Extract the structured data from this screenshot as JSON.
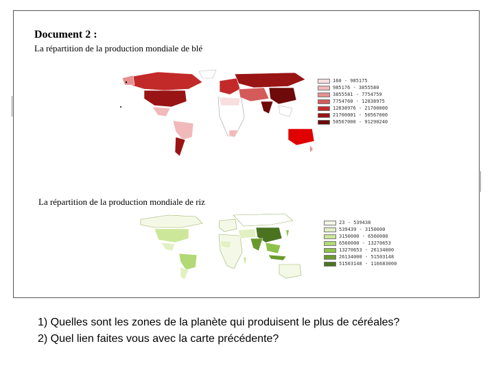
{
  "document": {
    "title": "Document 2 :",
    "wheat_map": {
      "title": "La répartition de la production mondiale de blé",
      "legend": [
        {
          "label": "160 - 985175",
          "color": "#f8dede"
        },
        {
          "label": "985176 - 3855580",
          "color": "#f1b9b9"
        },
        {
          "label": "3855581 - 7754759",
          "color": "#e69090"
        },
        {
          "label": "7754760 - 12838975",
          "color": "#d55a5a"
        },
        {
          "label": "12838976 - 21700000",
          "color": "#c22a2a"
        },
        {
          "label": "21700001 - 50567000",
          "color": "#991414"
        },
        {
          "label": "50567000 - 91290240",
          "color": "#6e0a0a"
        }
      ]
    },
    "rice_map": {
      "title": "La répartition de la production mondiale de riz",
      "legend": [
        {
          "label": "23 - 539438",
          "color": "#f4f8e6"
        },
        {
          "label": "539439 - 3150000",
          "color": "#e2f0c2"
        },
        {
          "label": "3150000 - 6560000",
          "color": "#cce79a"
        },
        {
          "label": "6560000 - 13270653",
          "color": "#b2d975"
        },
        {
          "label": "13270653 - 26134000",
          "color": "#8ec14a"
        },
        {
          "label": "26134000 - 51503148",
          "color": "#6a9a2e"
        },
        {
          "label": "51503148 - 116683000",
          "color": "#4a7320"
        }
      ]
    }
  },
  "questions": [
    "1) Quelles sont les zones de la planète qui produisent le plus de céréales?",
    "2) Quel lien faites vous avec la carte précédente?"
  ]
}
